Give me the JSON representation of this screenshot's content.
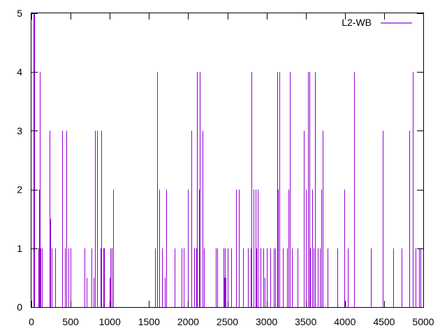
{
  "chart_data": {
    "type": "bar",
    "title": "",
    "xlabel": "",
    "ylabel": "",
    "xlim": [
      0,
      5000
    ],
    "ylim": [
      0,
      5
    ],
    "grid": false,
    "legend_position": "top-right",
    "x_ticks": [
      "0",
      "500",
      "1000",
      "1500",
      "2000",
      "2500",
      "3000",
      "3500",
      "4000",
      "4500",
      "5000"
    ],
    "y_ticks": [
      "0",
      "1",
      "2",
      "3",
      "4",
      "5"
    ],
    "series": [
      {
        "name": "L2-WB",
        "color": "#9400d3",
        "style": "impulses",
        "points": [
          [
            24,
            1
          ],
          [
            30,
            5
          ],
          [
            40,
            5
          ],
          [
            85,
            1
          ],
          [
            95,
            2
          ],
          [
            110,
            4
          ],
          [
            120,
            1
          ],
          [
            130,
            1
          ],
          [
            230,
            3
          ],
          [
            240,
            1.5
          ],
          [
            255,
            1
          ],
          [
            300,
            1
          ],
          [
            390,
            3
          ],
          [
            425,
            1
          ],
          [
            450,
            3
          ],
          [
            470,
            1
          ],
          [
            500,
            1
          ],
          [
            680,
            1
          ],
          [
            700,
            0.5
          ],
          [
            770,
            1
          ],
          [
            790,
            0.5
          ],
          [
            810,
            3
          ],
          [
            835,
            3
          ],
          [
            880,
            1
          ],
          [
            890,
            3
          ],
          [
            920,
            1
          ],
          [
            930,
            1
          ],
          [
            1000,
            0.5
          ],
          [
            1010,
            1
          ],
          [
            1025,
            1
          ],
          [
            1040,
            2
          ],
          [
            1580,
            1
          ],
          [
            1600,
            4
          ],
          [
            1630,
            2
          ],
          [
            1665,
            1
          ],
          [
            1700,
            0.5
          ],
          [
            1720,
            2
          ],
          [
            1830,
            1
          ],
          [
            1920,
            1
          ],
          [
            1940,
            1
          ],
          [
            2000,
            2
          ],
          [
            2040,
            3
          ],
          [
            2080,
            1
          ],
          [
            2100,
            1
          ],
          [
            2110,
            4
          ],
          [
            2140,
            2
          ],
          [
            2150,
            4
          ],
          [
            2180,
            3
          ],
          [
            2200,
            1
          ],
          [
            2350,
            1
          ],
          [
            2370,
            1
          ],
          [
            2450,
            1
          ],
          [
            2460,
            0.5
          ],
          [
            2470,
            1
          ],
          [
            2480,
            0.5
          ],
          [
            2500,
            1
          ],
          [
            2550,
            1
          ],
          [
            2610,
            2
          ],
          [
            2650,
            2
          ],
          [
            2700,
            1
          ],
          [
            2760,
            1
          ],
          [
            2800,
            1
          ],
          [
            2810,
            4
          ],
          [
            2830,
            2
          ],
          [
            2860,
            2
          ],
          [
            2870,
            1
          ],
          [
            2890,
            2
          ],
          [
            2920,
            1
          ],
          [
            2960,
            1
          ],
          [
            2980,
            0.5
          ],
          [
            3000,
            1
          ],
          [
            3050,
            1
          ],
          [
            3090,
            1
          ],
          [
            3110,
            1
          ],
          [
            3140,
            4
          ],
          [
            3150,
            2
          ],
          [
            3160,
            4
          ],
          [
            3210,
            1
          ],
          [
            3260,
            1
          ],
          [
            3280,
            2
          ],
          [
            3300,
            4
          ],
          [
            3320,
            1
          ],
          [
            3400,
            1
          ],
          [
            3480,
            3
          ],
          [
            3500,
            2
          ],
          [
            3530,
            4
          ],
          [
            3550,
            4
          ],
          [
            3560,
            1
          ],
          [
            3580,
            2
          ],
          [
            3600,
            1
          ],
          [
            3620,
            4
          ],
          [
            3650,
            1
          ],
          [
            3680,
            1
          ],
          [
            3700,
            2
          ],
          [
            3720,
            3
          ],
          [
            3780,
            1
          ],
          [
            3900,
            1
          ],
          [
            3990,
            2
          ],
          [
            4040,
            1
          ],
          [
            4120,
            4
          ],
          [
            4330,
            1
          ],
          [
            4480,
            3
          ],
          [
            4620,
            1
          ],
          [
            4720,
            1
          ],
          [
            4820,
            3
          ],
          [
            4870,
            4
          ],
          [
            4900,
            1
          ],
          [
            4950,
            1
          ],
          [
            4960,
            1
          ]
        ]
      }
    ]
  }
}
